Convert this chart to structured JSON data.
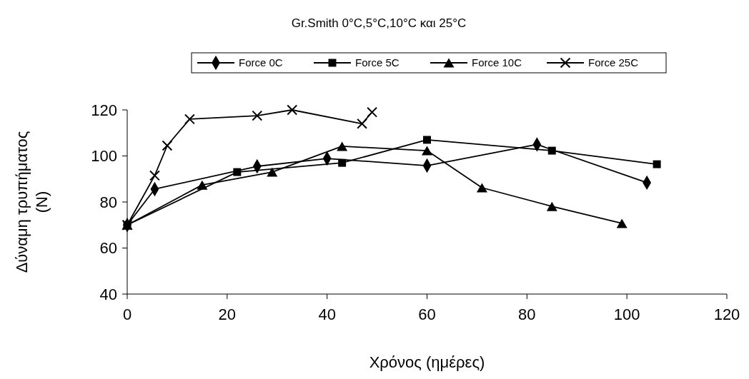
{
  "chart_data": {
    "type": "line",
    "title": "Gr.Smith 0°C,5°C,10°C και 25°C",
    "xlabel": "Χρόνος (ημέρες)",
    "ylabel": "Δύναμη τρυπήματος (N)",
    "xlim": [
      0,
      120
    ],
    "xticks": [
      0,
      20,
      40,
      60,
      80,
      100,
      120
    ],
    "ylim": [
      40,
      120
    ],
    "yticks": [
      40,
      60,
      80,
      100,
      120
    ],
    "grid": false,
    "legend": "top",
    "series": [
      {
        "name": "Force 0C",
        "color": "#000000",
        "marker": "diamond",
        "x": [
          0,
          5.5,
          26,
          40,
          60,
          82,
          104
        ],
        "values": [
          70,
          85.6,
          95.5,
          98.9,
          95.8,
          105,
          88.4
        ]
      },
      {
        "name": "Force 5C",
        "color": "#000000",
        "marker": "square",
        "x": [
          0,
          22,
          43,
          60,
          85,
          106
        ],
        "values": [
          70,
          93,
          97,
          107,
          102.3,
          96.4
        ]
      },
      {
        "name": "Force 10C",
        "color": "#000000",
        "marker": "triangle",
        "x": [
          0,
          15,
          29,
          43,
          60,
          71,
          85,
          99
        ],
        "values": [
          70,
          87.4,
          93,
          104.2,
          102.3,
          86.2,
          78.1,
          70.7
        ]
      },
      {
        "name": "Force 25C",
        "color": "#000000",
        "marker": "cross",
        "x": [
          0,
          5.5,
          8,
          12.5,
          26,
          33,
          47,
          49
        ],
        "values": [
          70,
          91.5,
          104.5,
          116,
          117.5,
          120,
          114,
          119
        ]
      }
    ]
  }
}
